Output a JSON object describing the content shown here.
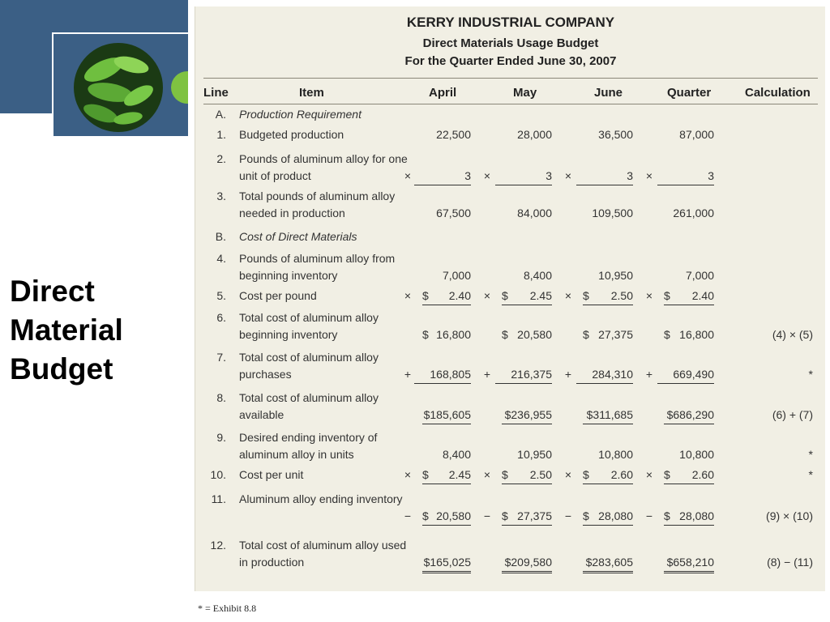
{
  "slide_title": "Direct\nMaterial\nBudget",
  "doc": {
    "company": "KERRY INDUSTRIAL COMPANY",
    "subtitle": "Direct Materials Usage Budget",
    "period": "For the Quarter Ended June 30, 2007"
  },
  "columns": {
    "line": "Line",
    "item": "Item",
    "april": "April",
    "may": "May",
    "june": "June",
    "quarter": "Quarter",
    "calculation": "Calculation"
  },
  "rows": [
    {
      "line": "A.",
      "item": "Production Requirement",
      "italic": true
    },
    {
      "line": "1.",
      "item": "Budgeted production",
      "op": "",
      "dollar": "",
      "values": [
        "22,500",
        "28,000",
        "36,500",
        "87,000"
      ],
      "calc": ""
    },
    {
      "line": "2.",
      "item": "Pounds of aluminum alloy for one unit of product",
      "op": "×",
      "dollar": "",
      "values": [
        "3",
        "3",
        "3",
        "3"
      ],
      "calc": "",
      "underline": true
    },
    {
      "line": "3.",
      "item": "Total pounds of aluminum alloy needed in production",
      "op": "",
      "dollar": "",
      "values": [
        "67,500",
        "84,000",
        "109,500",
        "261,000"
      ],
      "calc": ""
    },
    {
      "line": "B.",
      "item": "Cost of Direct Materials",
      "italic": true
    },
    {
      "line": "4.",
      "item": "Pounds of aluminum alloy from beginning inventory",
      "op": "",
      "dollar": "",
      "values": [
        "7,000",
        "8,400",
        "10,950",
        "7,000"
      ],
      "calc": ""
    },
    {
      "line": "5.",
      "item": "Cost per pound",
      "op": "×",
      "dollar": "$",
      "values": [
        "2.40",
        "2.45",
        "2.50",
        "2.40"
      ],
      "calc": "",
      "underline": true
    },
    {
      "line": "6.",
      "item": "Total cost of aluminum alloy beginning inventory",
      "op": "",
      "dollar": "$",
      "values": [
        "16,800",
        "20,580",
        "27,375",
        "16,800"
      ],
      "calc": "(4) × (5)"
    },
    {
      "line": "7.",
      "item": "Total cost of aluminum alloy purchases",
      "op": "+",
      "dollar": "",
      "values": [
        "168,805",
        "216,375",
        "284,310",
        "669,490"
      ],
      "calc": "*",
      "underline": true
    },
    {
      "line": "8.",
      "item": "Total cost of aluminum alloy available",
      "op": "",
      "dollar": "$",
      "values": [
        "185,605",
        "236,955",
        "311,685",
        "686,290"
      ],
      "calc": "(6) + (7)",
      "underline": true,
      "nospace": true
    },
    {
      "line": "9.",
      "item": "Desired ending inventory of aluminum alloy in units",
      "op": "",
      "dollar": "",
      "values": [
        "8,400",
        "10,950",
        "10,800",
        "10,800"
      ],
      "calc": "*"
    },
    {
      "line": "10.",
      "item": "Cost per unit",
      "op": "×",
      "dollar": "$",
      "values": [
        "2.45",
        "2.50",
        "2.60",
        "2.60"
      ],
      "calc": "*",
      "underline": true
    },
    {
      "line": "11.",
      "item": "Aluminum alloy ending inventory",
      "op": "−",
      "dollar": "$",
      "values": [
        "20,580",
        "27,375",
        "28,080",
        "28,080"
      ],
      "calc": "(9) × (10)",
      "underline": true
    },
    {
      "line": "12.",
      "item": "Total cost of aluminum alloy used in production",
      "op": "",
      "dollar": "$",
      "values": [
        "165,025",
        "209,580",
        "283,605",
        "658,210"
      ],
      "calc": "(8) − (11)",
      "double": true,
      "nospace": true
    }
  ],
  "footnote": "* = Exhibit 8.8",
  "colors": {
    "accent": "#3b5f85",
    "paper": "#f1efe4",
    "leaf": "#5fa83a"
  },
  "icons": {
    "decor": "leaf-photo"
  }
}
